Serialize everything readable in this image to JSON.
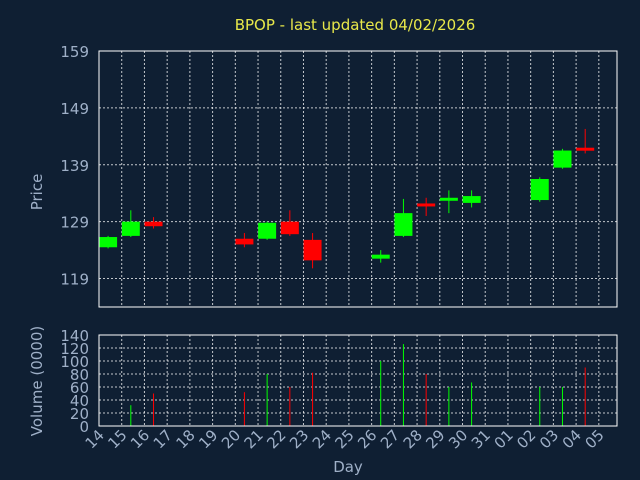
{
  "chart_data": {
    "type": "candlestick",
    "title": "BPOP - last updated 04/02/2026",
    "xlabel": "Day",
    "x_ticks": [
      "14",
      "15",
      "16",
      "17",
      "18",
      "19",
      "20",
      "21",
      "22",
      "23",
      "24",
      "25",
      "26",
      "27",
      "28",
      "29",
      "30",
      "31",
      "01",
      "02",
      "03",
      "04",
      "05"
    ],
    "price": {
      "ylabel": "Price",
      "ylim": [
        114,
        159
      ],
      "y_ticks": [
        119,
        129,
        139,
        149,
        159
      ]
    },
    "volume": {
      "ylabel": "Volume (0000)",
      "ylim": [
        0,
        140
      ],
      "y_ticks": [
        0,
        20,
        40,
        60,
        80,
        100,
        120,
        140
      ]
    },
    "up_color": "#00ff00",
    "down_color": "#ff0000",
    "candles": [
      {
        "x": "14",
        "open": 124.5,
        "close": 126.3,
        "high": 126.5,
        "low": 124.3,
        "volume": 0
      },
      {
        "x": "15",
        "open": 126.5,
        "close": 129.0,
        "high": 131.0,
        "low": 126.3,
        "volume": 32
      },
      {
        "x": "16",
        "open": 129.0,
        "close": 128.2,
        "high": 129.8,
        "low": 127.8,
        "volume": 50
      },
      {
        "x": "20",
        "open": 126.0,
        "close": 125.0,
        "high": 127.0,
        "low": 124.5,
        "volume": 52
      },
      {
        "x": "21",
        "open": 126.0,
        "close": 128.8,
        "high": 129.0,
        "low": 125.8,
        "volume": 80
      },
      {
        "x": "22",
        "open": 129.0,
        "close": 126.8,
        "high": 131.0,
        "low": 126.5,
        "volume": 60
      },
      {
        "x": "23",
        "open": 125.8,
        "close": 122.2,
        "high": 127.0,
        "low": 120.8,
        "volume": 82
      },
      {
        "x": "26",
        "open": 122.5,
        "close": 123.2,
        "high": 124.0,
        "low": 121.8,
        "volume": 100
      },
      {
        "x": "27",
        "open": 126.5,
        "close": 130.5,
        "high": 133.0,
        "low": 126.3,
        "volume": 126
      },
      {
        "x": "28",
        "open": 132.2,
        "close": 131.8,
        "high": 133.2,
        "low": 130.0,
        "volume": 80
      },
      {
        "x": "29",
        "open": 133.0,
        "close": 133.2,
        "high": 134.5,
        "low": 130.5,
        "volume": 60
      },
      {
        "x": "30",
        "open": 132.3,
        "close": 133.5,
        "high": 134.5,
        "low": 131.5,
        "volume": 67
      },
      {
        "x": "02",
        "open": 132.8,
        "close": 136.5,
        "high": 136.8,
        "low": 132.5,
        "volume": 60
      },
      {
        "x": "03",
        "open": 138.5,
        "close": 141.5,
        "high": 141.8,
        "low": 138.3,
        "volume": 60
      },
      {
        "x": "04",
        "open": 142.0,
        "close": 141.5,
        "high": 145.3,
        "low": 141.0,
        "volume": 90
      }
    ]
  }
}
